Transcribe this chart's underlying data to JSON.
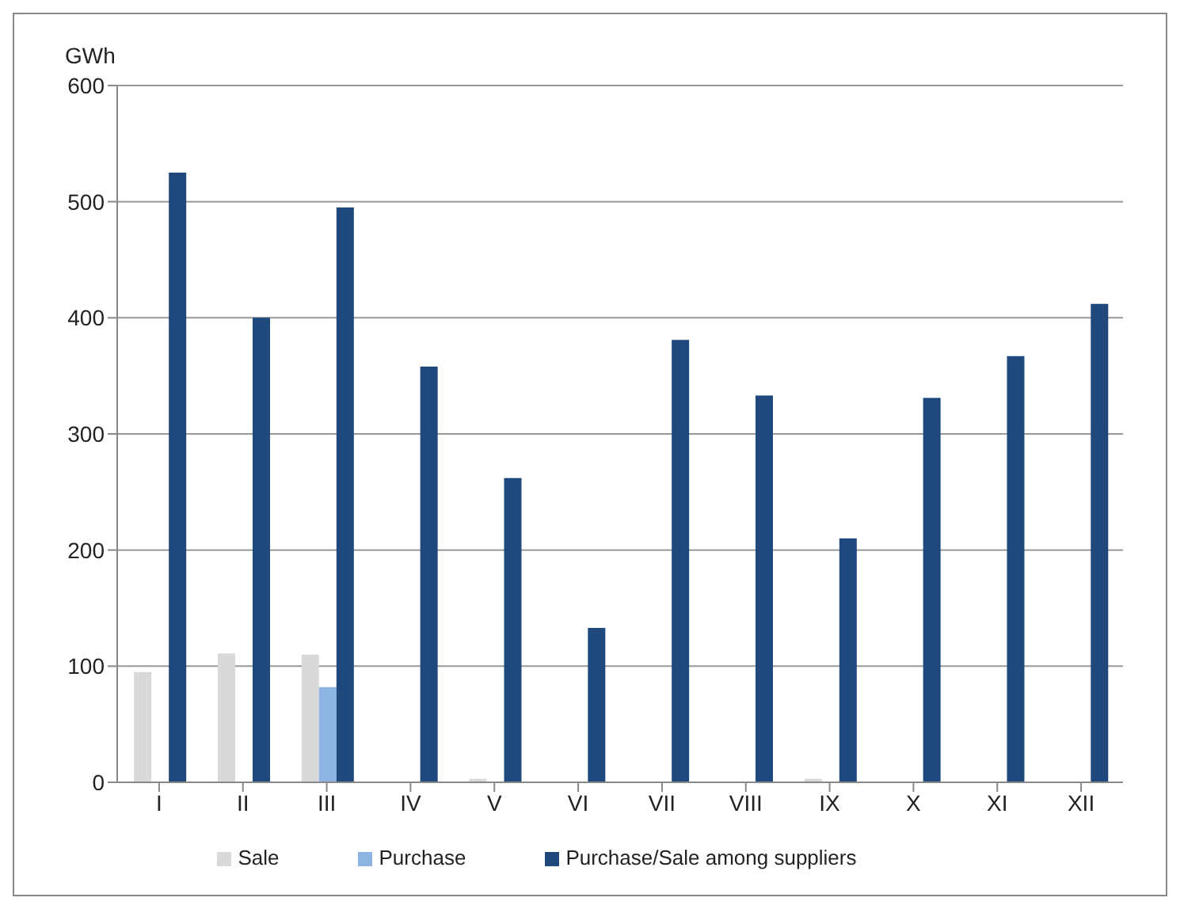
{
  "chart_data": {
    "type": "bar",
    "ylabel": "GWh",
    "categories": [
      "I",
      "II",
      "III",
      "IV",
      "V",
      "VI",
      "VII",
      "VIII",
      "IX",
      "X",
      "XI",
      "XII"
    ],
    "series": [
      {
        "name": "Sale",
        "color": "#d9d9d9",
        "values": [
          95,
          111,
          110,
          0,
          3,
          0,
          0,
          0,
          3,
          0,
          0,
          0
        ]
      },
      {
        "name": "Purchase",
        "color": "#8eb4e3",
        "values": [
          0,
          0,
          82,
          0,
          0,
          0,
          0,
          0,
          0,
          0,
          0,
          0
        ]
      },
      {
        "name": "Purchase/Sale among suppliers",
        "color": "#1f497d",
        "values": [
          525,
          400,
          495,
          358,
          262,
          133,
          381,
          333,
          210,
          331,
          367,
          412
        ]
      }
    ],
    "ylim": [
      0,
      600
    ],
    "yticks": [
      0,
      100,
      200,
      300,
      400,
      500,
      600
    ],
    "grid": "y",
    "legend": "bottom"
  }
}
